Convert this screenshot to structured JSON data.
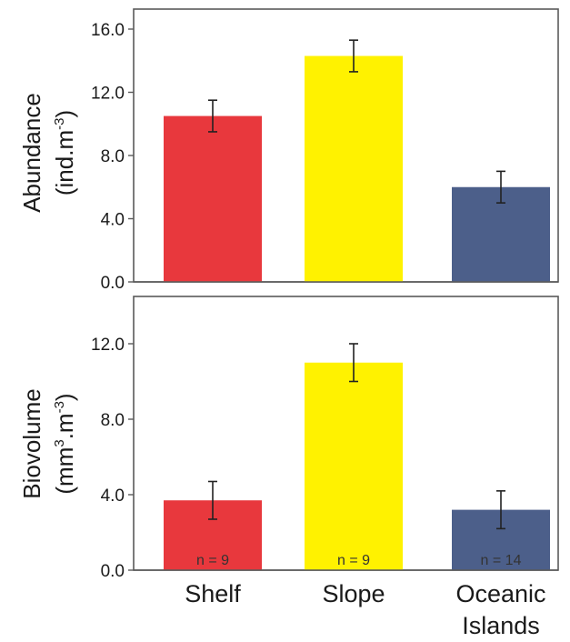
{
  "chart_data": [
    {
      "type": "bar",
      "categories": [
        "Shelf",
        "Slope",
        "Oceanic Islands"
      ],
      "values": [
        10.5,
        14.3,
        6.0
      ],
      "error": [
        1.0,
        1.0,
        1.0
      ],
      "colors": [
        "#e8383d",
        "#fff200",
        "#4c5f8a"
      ],
      "ylabel": "Abundance",
      "ylabel_unit": "(ind.m",
      "ylabel_unit_sup": "-3",
      "ylabel_unit_end": ")",
      "ylim": [
        0,
        16.0
      ],
      "yticks": [
        "0.0",
        "4.0",
        "8.0",
        "12.0",
        "16.0"
      ],
      "ytick_values": [
        0,
        4,
        8,
        12,
        16
      ],
      "grid": false
    },
    {
      "type": "bar",
      "categories": [
        "Shelf",
        "Slope",
        "Oceanic Islands"
      ],
      "values": [
        3.7,
        11.0,
        3.2
      ],
      "error": [
        1.0,
        1.0,
        1.0
      ],
      "colors": [
        "#e8383d",
        "#fff200",
        "#4c5f8a"
      ],
      "ylabel": "Biovolume",
      "ylabel_unit": "(mm",
      "ylabel_unit_sup": "3",
      "ylabel_unit_mid": ".m",
      "ylabel_unit_sup2": "-3",
      "ylabel_unit_end": ")",
      "ylim": [
        0,
        14.0
      ],
      "yticks": [
        "0.0",
        "4.0",
        "8.0",
        "12.0"
      ],
      "ytick_values": [
        0,
        4,
        8,
        12
      ],
      "sample_sizes": [
        "n = 9",
        "n = 9",
        "n = 14"
      ],
      "grid": false
    }
  ],
  "x_labels": {
    "shelf": "Shelf",
    "slope": "Slope",
    "oceanic_line1": "Oceanic",
    "oceanic_line2": "Islands"
  }
}
